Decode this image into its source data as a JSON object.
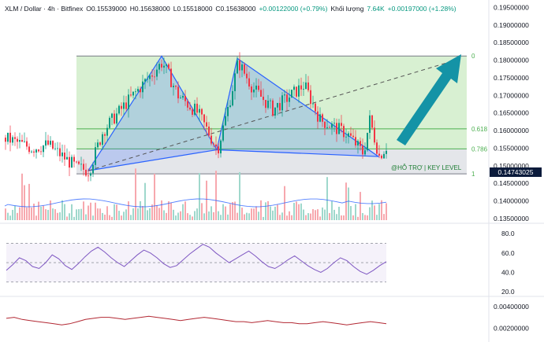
{
  "header": {
    "symbol": "XLM / Dollar · 4h · Bitfinex",
    "open": "O0.15539000",
    "high": "H0.15638000",
    "low": "L0.15518000",
    "close": "C0.15638000",
    "change": "+0.00122000 (+0.79%)",
    "volume_label": "Khối lượng",
    "volume_value": "7.64K",
    "volume_change": "+0.00197000 (+1.28%)"
  },
  "price_axis": {
    "ticks": [
      "0.19500000",
      "0.19000000",
      "0.18500000",
      "0.18000000",
      "0.17500000",
      "0.17000000",
      "0.16500000",
      "0.16000000",
      "0.15500000",
      "0.15000000",
      "0.14500000",
      "0.14000000",
      "0.13500000"
    ],
    "current_price": "0.14743025"
  },
  "fib_labels": [
    "0",
    "0.618",
    "0.786",
    "1"
  ],
  "support_label": "@HỖ TRỢ | KEY LEVEL",
  "rsi_axis": {
    "ticks": [
      "80.0",
      "60.0",
      "40.0",
      "20.0"
    ]
  },
  "osc_axis": {
    "ticks": [
      "0.00400000",
      "0.00200000"
    ]
  },
  "colors": {
    "up": "#089981",
    "down": "#f23645",
    "pattern": "#2962ff",
    "arrow": "#1493a6",
    "fib_zone": "#d8f0d2"
  },
  "chart_data": [
    {
      "type": "candlestick",
      "title": "XLM / Dollar · 4h · Bitfinex",
      "ylim": [
        0.13,
        0.196
      ],
      "annotations": {
        "fib_levels": [
          {
            "label": "0",
            "price": 0.1812
          },
          {
            "label": "0.618",
            "price": 0.1605
          },
          {
            "label": "0.786",
            "price": 0.1548
          },
          {
            "label": "1",
            "price": 0.1477
          }
        ],
        "support_zone": [
          0.1477,
          0.1548
        ],
        "pattern_points": [
          [
            0.1486,
            0.18117,
            0.15456,
            0.18054,
            0.15262
          ]
        ],
        "target_price": 0.1805
      }
    },
    {
      "type": "line",
      "title": "RSI",
      "ylim": [
        20,
        85
      ],
      "bands": [
        70,
        50,
        30
      ],
      "values": [
        42,
        48,
        55,
        52,
        46,
        44,
        50,
        58,
        54,
        47,
        43,
        49,
        56,
        62,
        66,
        61,
        55,
        50,
        46,
        52,
        58,
        63,
        60,
        55,
        49,
        45,
        47,
        53,
        59,
        64,
        69,
        66,
        60,
        55,
        50,
        54,
        58,
        62,
        57,
        51,
        46,
        44,
        48,
        53,
        57,
        52,
        47,
        43,
        40,
        44,
        50,
        55,
        52,
        46,
        41,
        38,
        42,
        47,
        51
      ]
    },
    {
      "type": "line",
      "title": "Oscillator",
      "ylim": [
        0.001,
        0.0045
      ],
      "values": [
        0.0029,
        0.003,
        0.0028,
        0.0027,
        0.0026,
        0.0025,
        0.0024,
        0.0023,
        0.0024,
        0.0026,
        0.0028,
        0.0029,
        0.003,
        0.003,
        0.0029,
        0.0028,
        0.0029,
        0.003,
        0.0031,
        0.003,
        0.0029,
        0.0028,
        0.0027,
        0.0028,
        0.0029,
        0.003,
        0.0029,
        0.0028,
        0.0027,
        0.0026,
        0.0026,
        0.0025,
        0.0026,
        0.0027,
        0.0026,
        0.0025,
        0.0025,
        0.0024,
        0.0024,
        0.0025,
        0.0026,
        0.0025,
        0.0024,
        0.0023,
        0.0024,
        0.0025,
        0.0026,
        0.0025,
        0.0024
      ]
    }
  ]
}
